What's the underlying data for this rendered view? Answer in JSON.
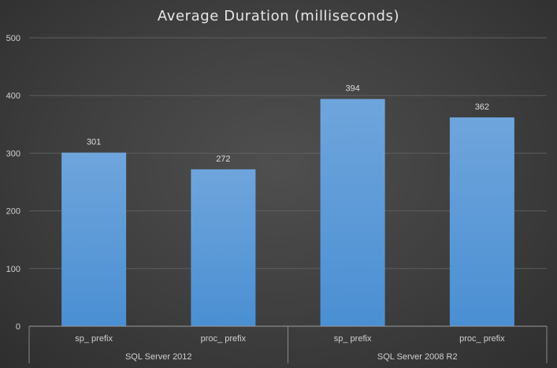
{
  "chart_data": {
    "type": "bar",
    "title": "Average Duration (milliseconds)",
    "xlabel": "",
    "ylabel": "",
    "ylim": [
      0,
      500
    ],
    "yticks": [
      0,
      100,
      200,
      300,
      400,
      500
    ],
    "grid": true,
    "legend": null,
    "categories": [
      "sp_ prefix",
      "proc_ prefix",
      "sp_ prefix",
      "proc_ prefix"
    ],
    "groups": [
      {
        "label": "SQL Server 2012",
        "categories": [
          "sp_ prefix",
          "proc_ prefix"
        ]
      },
      {
        "label": "SQL Server 2008 R2",
        "categories": [
          "sp_ prefix",
          "proc_ prefix"
        ]
      }
    ],
    "values": [
      301,
      272,
      394,
      362
    ],
    "data_labels": [
      "301",
      "272",
      "394",
      "362"
    ],
    "bar_color": "#5b9bd5"
  }
}
